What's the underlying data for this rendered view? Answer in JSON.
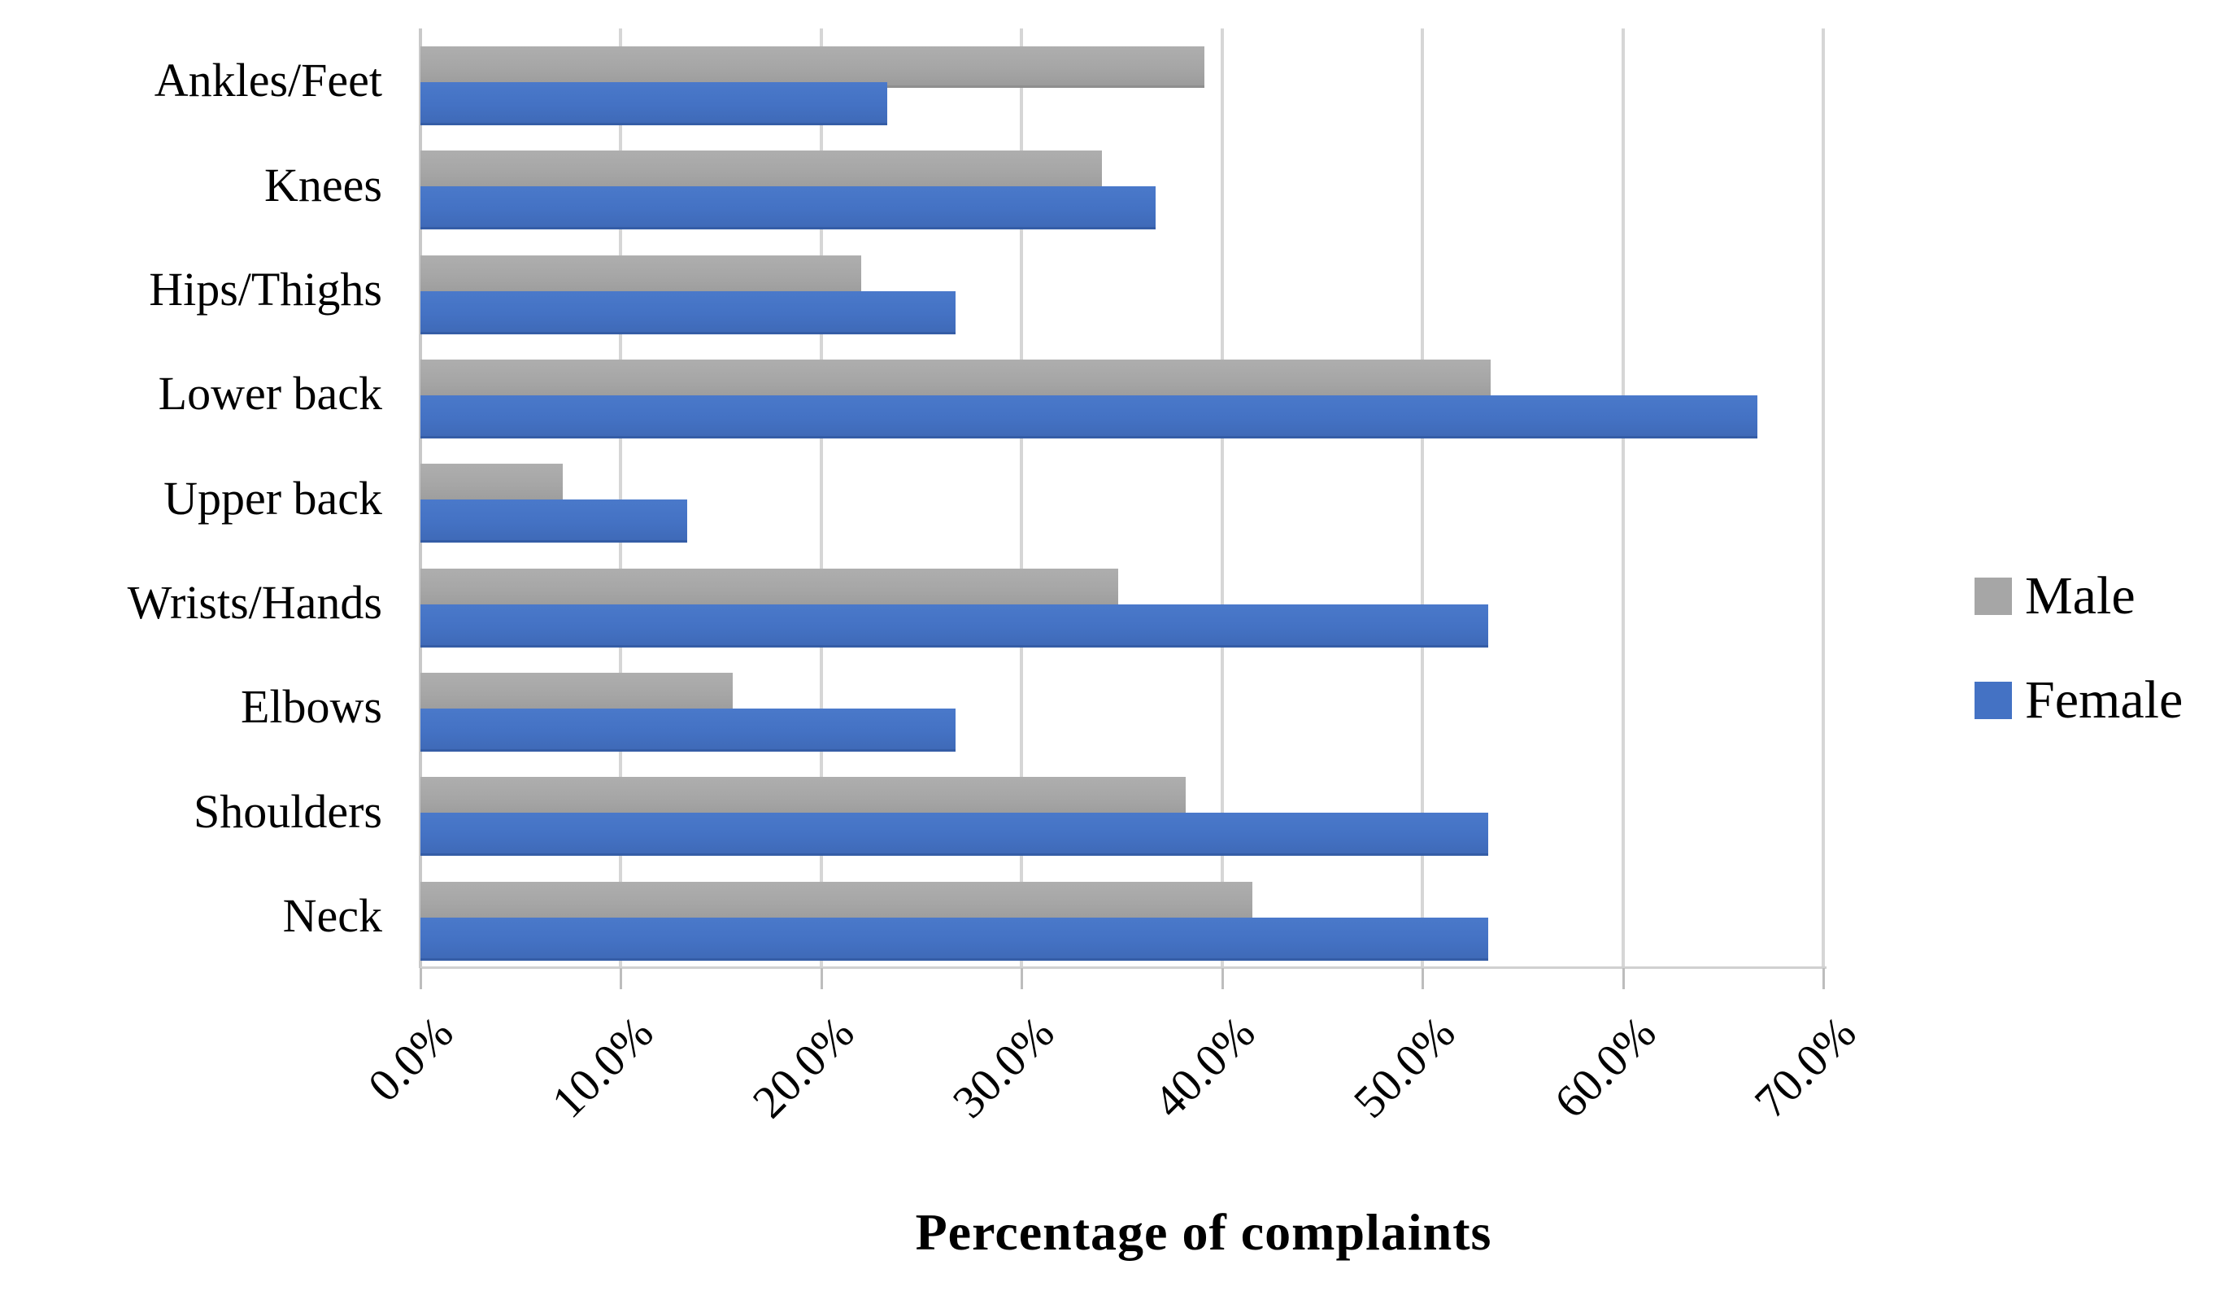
{
  "chart_data": {
    "type": "bar",
    "orientation": "horizontal",
    "title": "",
    "xlabel": "Percentage of complaints",
    "ylabel": "",
    "xlim": [
      0,
      70
    ],
    "x_ticks": [
      "0.0%",
      "10.0%",
      "20.0%",
      "30.0%",
      "40.0%",
      "50.0%",
      "60.0%",
      "70.0%"
    ],
    "x_tick_values": [
      0,
      10,
      20,
      30,
      40,
      50,
      60,
      70
    ],
    "grid": "vertical-gridlines-on",
    "legend_position": "right",
    "categories": [
      "Ankles/Feet",
      "Knees",
      "Hips/Thighs",
      "Lower back",
      "Upper back",
      "Wrists/Hands",
      "Elbows",
      "Shoulders",
      "Neck"
    ],
    "series": [
      {
        "name": "Male",
        "color": "#a6a6a6",
        "values": [
          39.1,
          34.0,
          22.0,
          53.4,
          7.1,
          34.8,
          15.6,
          38.2,
          41.5
        ]
      },
      {
        "name": "Female",
        "color": "#4472c4",
        "values": [
          23.3,
          36.7,
          26.7,
          66.7,
          13.3,
          53.3,
          26.7,
          53.3,
          53.3
        ]
      }
    ],
    "value_suffix": "%"
  },
  "colors": {
    "male_bar": "#a6a6a6",
    "female_bar": "#4472c4",
    "gridline": "#d6d6d6",
    "tick": "#bdbdbd",
    "text": "#000000",
    "background": "#ffffff"
  }
}
